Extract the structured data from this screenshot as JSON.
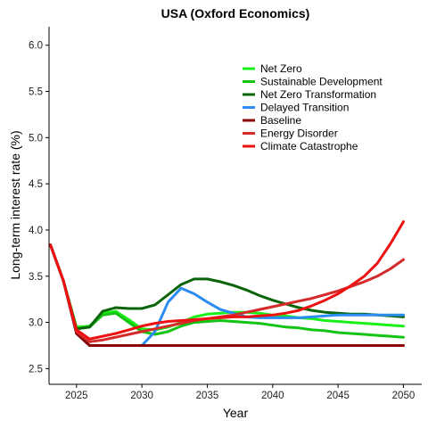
{
  "chart_data": {
    "type": "line",
    "title": "USA (Oxford Economics)",
    "xlabel": "Year",
    "ylabel": "Long-term interest rate (%)",
    "xlim": [
      2022.9,
      2051.4
    ],
    "ylim": [
      2.33,
      6.2
    ],
    "xticks": [
      2025,
      2030,
      2035,
      2040,
      2045,
      2050
    ],
    "yticks": [
      2.5,
      3.0,
      3.5,
      4.0,
      4.5,
      5.0,
      5.5,
      6.0
    ],
    "grid": false,
    "legend_position": "top-right",
    "x": [
      2023,
      2024,
      2025,
      2026,
      2027,
      2028,
      2029,
      2030,
      2031,
      2032,
      2033,
      2034,
      2035,
      2036,
      2037,
      2038,
      2039,
      2040,
      2041,
      2042,
      2043,
      2044,
      2045,
      2046,
      2047,
      2048,
      2049,
      2050
    ],
    "series": [
      {
        "name": "Net Zero",
        "color": "#1aef1a",
        "values": [
          3.84,
          3.45,
          2.95,
          2.96,
          3.1,
          3.12,
          3.03,
          2.93,
          2.92,
          2.95,
          3.0,
          3.06,
          3.09,
          3.1,
          3.11,
          3.11,
          3.1,
          3.08,
          3.07,
          3.05,
          3.04,
          3.02,
          3.01,
          3.0,
          2.99,
          2.98,
          2.97,
          2.96
        ]
      },
      {
        "name": "Sustainable Development",
        "color": "#14c414",
        "values": [
          3.84,
          3.45,
          2.93,
          2.95,
          3.08,
          3.1,
          3.0,
          2.9,
          2.87,
          2.9,
          2.96,
          3.0,
          3.01,
          3.02,
          3.01,
          3.0,
          2.99,
          2.97,
          2.95,
          2.94,
          2.92,
          2.91,
          2.89,
          2.88,
          2.87,
          2.86,
          2.85,
          2.84
        ]
      },
      {
        "name": "Net Zero Transformation",
        "color": "#0a640a",
        "values": [
          3.84,
          3.45,
          2.93,
          2.95,
          3.12,
          3.16,
          3.15,
          3.15,
          3.19,
          3.3,
          3.41,
          3.47,
          3.47,
          3.44,
          3.4,
          3.35,
          3.29,
          3.24,
          3.2,
          3.16,
          3.13,
          3.11,
          3.1,
          3.09,
          3.09,
          3.08,
          3.07,
          3.06
        ]
      },
      {
        "name": "Delayed Transition",
        "color": "#2b8cf2",
        "values": [
          3.84,
          3.45,
          2.88,
          2.75,
          2.75,
          2.75,
          2.75,
          2.75,
          2.9,
          3.22,
          3.37,
          3.31,
          3.22,
          3.14,
          3.1,
          3.06,
          3.05,
          3.05,
          3.05,
          3.05,
          3.06,
          3.07,
          3.08,
          3.08,
          3.08,
          3.08,
          3.08,
          3.08
        ]
      },
      {
        "name": "Baseline",
        "color": "#8b0000",
        "values": [
          3.84,
          3.45,
          2.88,
          2.75,
          2.75,
          2.75,
          2.75,
          2.75,
          2.75,
          2.75,
          2.75,
          2.75,
          2.75,
          2.75,
          2.75,
          2.75,
          2.75,
          2.75,
          2.75,
          2.75,
          2.75,
          2.75,
          2.75,
          2.75,
          2.75,
          2.75,
          2.75,
          2.75
        ]
      },
      {
        "name": "Energy Disorder",
        "color": "#d42a2a",
        "values": [
          3.84,
          3.45,
          2.9,
          2.79,
          2.81,
          2.84,
          2.87,
          2.9,
          2.93,
          2.96,
          2.99,
          3.02,
          3.04,
          3.06,
          3.08,
          3.11,
          3.14,
          3.17,
          3.2,
          3.23,
          3.26,
          3.3,
          3.34,
          3.39,
          3.44,
          3.5,
          3.58,
          3.68
        ]
      },
      {
        "name": "Climate Catastrophe",
        "color": "#ee1111",
        "values": [
          3.84,
          3.45,
          2.92,
          2.82,
          2.85,
          2.88,
          2.92,
          2.96,
          2.99,
          3.01,
          3.02,
          3.03,
          3.04,
          3.05,
          3.06,
          3.06,
          3.07,
          3.08,
          3.1,
          3.13,
          3.18,
          3.24,
          3.31,
          3.4,
          3.5,
          3.64,
          3.85,
          4.09
        ]
      }
    ]
  }
}
